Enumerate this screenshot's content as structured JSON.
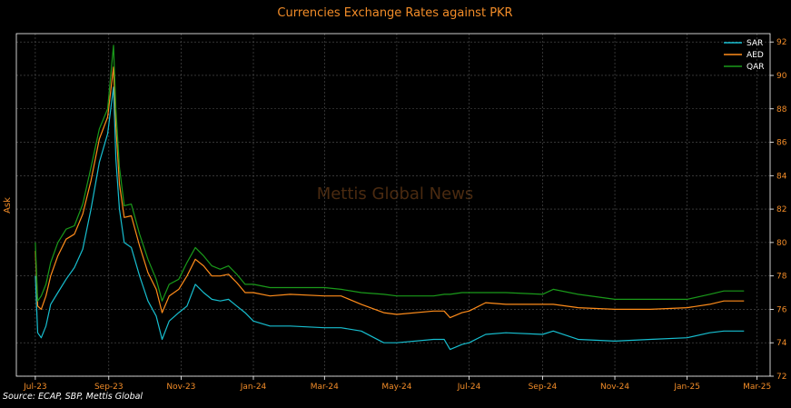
{
  "source_text": "Source: ECAP, SBP, Mettis Global",
  "watermark": "Mettis Global News",
  "colors": {
    "background": "#000000",
    "accent": "#f28c28",
    "SAR": "#17becf",
    "AED": "#ff8c1a",
    "QAR": "#1a9a1a"
  },
  "chart_data": {
    "type": "line",
    "title": "Currencies Exchange Rates against PKR",
    "ylabel": "Ask",
    "xlabel": "",
    "ylim": [
      72,
      92.5
    ],
    "yticks": [
      72,
      74,
      76,
      78,
      80,
      82,
      84,
      86,
      88,
      90,
      92
    ],
    "xrange": [
      "2023-06-15",
      "2025-03-12"
    ],
    "xticks": [
      {
        "date": "2023-07-01",
        "label": "Jul-23"
      },
      {
        "date": "2023-09-01",
        "label": "Sep-23"
      },
      {
        "date": "2023-11-01",
        "label": "Nov-23"
      },
      {
        "date": "2024-01-01",
        "label": "Jan-24"
      },
      {
        "date": "2024-03-01",
        "label": "Mar-24"
      },
      {
        "date": "2024-05-01",
        "label": "May-24"
      },
      {
        "date": "2024-07-01",
        "label": "Jul-24"
      },
      {
        "date": "2024-09-01",
        "label": "Sep-24"
      },
      {
        "date": "2024-11-01",
        "label": "Nov-24"
      },
      {
        "date": "2025-01-01",
        "label": "Jan-25"
      },
      {
        "date": "2025-03-01",
        "label": "Mar-25"
      }
    ],
    "grid": true,
    "legend_position": "top-right",
    "series": [
      {
        "name": "SAR",
        "points": [
          [
            "2023-07-01",
            78.0
          ],
          [
            "2023-07-03",
            74.6
          ],
          [
            "2023-07-06",
            74.3
          ],
          [
            "2023-07-10",
            75.0
          ],
          [
            "2023-07-14",
            76.3
          ],
          [
            "2023-07-20",
            77.0
          ],
          [
            "2023-07-27",
            77.8
          ],
          [
            "2023-08-03",
            78.5
          ],
          [
            "2023-08-10",
            79.6
          ],
          [
            "2023-08-17",
            82.0
          ],
          [
            "2023-08-24",
            84.8
          ],
          [
            "2023-08-31",
            86.5
          ],
          [
            "2023-09-05",
            89.3
          ],
          [
            "2023-09-07",
            85.0
          ],
          [
            "2023-09-10",
            82.0
          ],
          [
            "2023-09-14",
            80.0
          ],
          [
            "2023-09-20",
            79.7
          ],
          [
            "2023-09-27",
            78.0
          ],
          [
            "2023-10-04",
            76.5
          ],
          [
            "2023-10-11",
            75.6
          ],
          [
            "2023-10-16",
            74.2
          ],
          [
            "2023-10-22",
            75.3
          ],
          [
            "2023-10-30",
            75.8
          ],
          [
            "2023-11-06",
            76.2
          ],
          [
            "2023-11-13",
            77.5
          ],
          [
            "2023-11-20",
            77.0
          ],
          [
            "2023-11-27",
            76.6
          ],
          [
            "2023-12-04",
            76.5
          ],
          [
            "2023-12-11",
            76.6
          ],
          [
            "2023-12-18",
            76.2
          ],
          [
            "2023-12-25",
            75.8
          ],
          [
            "2024-01-01",
            75.3
          ],
          [
            "2024-01-15",
            75.0
          ],
          [
            "2024-02-01",
            75.0
          ],
          [
            "2024-03-01",
            74.9
          ],
          [
            "2024-03-15",
            74.9
          ],
          [
            "2024-04-01",
            74.7
          ],
          [
            "2024-04-20",
            74.0
          ],
          [
            "2024-05-01",
            74.0
          ],
          [
            "2024-06-01",
            74.2
          ],
          [
            "2024-06-10",
            74.2
          ],
          [
            "2024-06-15",
            73.6
          ],
          [
            "2024-06-25",
            73.9
          ],
          [
            "2024-07-01",
            74.0
          ],
          [
            "2024-07-15",
            74.5
          ],
          [
            "2024-08-01",
            74.6
          ],
          [
            "2024-09-01",
            74.5
          ],
          [
            "2024-09-10",
            74.7
          ],
          [
            "2024-10-01",
            74.2
          ],
          [
            "2024-11-01",
            74.1
          ],
          [
            "2024-12-01",
            74.2
          ],
          [
            "2025-01-01",
            74.3
          ],
          [
            "2025-01-20",
            74.6
          ],
          [
            "2025-02-01",
            74.7
          ],
          [
            "2025-02-18",
            74.7
          ]
        ]
      },
      {
        "name": "AED",
        "points": [
          [
            "2023-07-01",
            79.5
          ],
          [
            "2023-07-03",
            76.2
          ],
          [
            "2023-07-06",
            76.0
          ],
          [
            "2023-07-10",
            76.8
          ],
          [
            "2023-07-14",
            78.0
          ],
          [
            "2023-07-20",
            79.2
          ],
          [
            "2023-07-27",
            80.2
          ],
          [
            "2023-08-03",
            80.5
          ],
          [
            "2023-08-10",
            81.7
          ],
          [
            "2023-08-17",
            83.7
          ],
          [
            "2023-08-24",
            86.2
          ],
          [
            "2023-08-31",
            87.5
          ],
          [
            "2023-09-05",
            90.5
          ],
          [
            "2023-09-07",
            87.0
          ],
          [
            "2023-09-10",
            83.5
          ],
          [
            "2023-09-14",
            81.5
          ],
          [
            "2023-09-20",
            81.6
          ],
          [
            "2023-09-27",
            79.8
          ],
          [
            "2023-10-04",
            78.2
          ],
          [
            "2023-10-11",
            77.2
          ],
          [
            "2023-10-16",
            75.8
          ],
          [
            "2023-10-22",
            76.8
          ],
          [
            "2023-10-30",
            77.2
          ],
          [
            "2023-11-06",
            78.0
          ],
          [
            "2023-11-13",
            79.0
          ],
          [
            "2023-11-20",
            78.6
          ],
          [
            "2023-11-27",
            78.0
          ],
          [
            "2023-12-04",
            78.0
          ],
          [
            "2023-12-11",
            78.1
          ],
          [
            "2023-12-18",
            77.6
          ],
          [
            "2023-12-25",
            77.0
          ],
          [
            "2024-01-01",
            77.0
          ],
          [
            "2024-01-15",
            76.8
          ],
          [
            "2024-02-01",
            76.9
          ],
          [
            "2024-03-01",
            76.8
          ],
          [
            "2024-03-15",
            76.8
          ],
          [
            "2024-04-01",
            76.3
          ],
          [
            "2024-04-20",
            75.8
          ],
          [
            "2024-05-01",
            75.7
          ],
          [
            "2024-06-01",
            75.9
          ],
          [
            "2024-06-10",
            75.9
          ],
          [
            "2024-06-15",
            75.5
          ],
          [
            "2024-06-25",
            75.8
          ],
          [
            "2024-07-01",
            75.9
          ],
          [
            "2024-07-15",
            76.4
          ],
          [
            "2024-08-01",
            76.3
          ],
          [
            "2024-09-01",
            76.3
          ],
          [
            "2024-09-10",
            76.3
          ],
          [
            "2024-10-01",
            76.1
          ],
          [
            "2024-11-01",
            76.0
          ],
          [
            "2024-12-01",
            76.0
          ],
          [
            "2025-01-01",
            76.1
          ],
          [
            "2025-01-20",
            76.3
          ],
          [
            "2025-02-01",
            76.5
          ],
          [
            "2025-02-18",
            76.5
          ]
        ]
      },
      {
        "name": "QAR",
        "points": [
          [
            "2023-07-01",
            80.0
          ],
          [
            "2023-07-03",
            76.5
          ],
          [
            "2023-07-06",
            76.8
          ],
          [
            "2023-07-10",
            77.5
          ],
          [
            "2023-07-14",
            78.8
          ],
          [
            "2023-07-20",
            80.0
          ],
          [
            "2023-07-27",
            80.8
          ],
          [
            "2023-08-03",
            81.0
          ],
          [
            "2023-08-10",
            82.3
          ],
          [
            "2023-08-17",
            84.5
          ],
          [
            "2023-08-24",
            86.8
          ],
          [
            "2023-08-31",
            88.0
          ],
          [
            "2023-09-05",
            91.8
          ],
          [
            "2023-09-07",
            88.0
          ],
          [
            "2023-09-10",
            84.5
          ],
          [
            "2023-09-14",
            82.2
          ],
          [
            "2023-09-20",
            82.3
          ],
          [
            "2023-09-27",
            80.5
          ],
          [
            "2023-10-04",
            79.0
          ],
          [
            "2023-10-11",
            77.8
          ],
          [
            "2023-10-16",
            76.5
          ],
          [
            "2023-10-22",
            77.5
          ],
          [
            "2023-10-30",
            77.8
          ],
          [
            "2023-11-06",
            78.8
          ],
          [
            "2023-11-13",
            79.7
          ],
          [
            "2023-11-20",
            79.2
          ],
          [
            "2023-11-27",
            78.6
          ],
          [
            "2023-12-04",
            78.4
          ],
          [
            "2023-12-11",
            78.6
          ],
          [
            "2023-12-18",
            78.1
          ],
          [
            "2023-12-25",
            77.5
          ],
          [
            "2024-01-01",
            77.5
          ],
          [
            "2024-01-15",
            77.3
          ],
          [
            "2024-02-01",
            77.3
          ],
          [
            "2024-03-01",
            77.3
          ],
          [
            "2024-03-15",
            77.2
          ],
          [
            "2024-04-01",
            77.0
          ],
          [
            "2024-04-20",
            76.9
          ],
          [
            "2024-05-01",
            76.8
          ],
          [
            "2024-06-01",
            76.8
          ],
          [
            "2024-06-10",
            76.9
          ],
          [
            "2024-06-15",
            76.9
          ],
          [
            "2024-06-25",
            77.0
          ],
          [
            "2024-07-01",
            77.0
          ],
          [
            "2024-07-15",
            77.0
          ],
          [
            "2024-08-01",
            77.0
          ],
          [
            "2024-09-01",
            76.9
          ],
          [
            "2024-09-10",
            77.2
          ],
          [
            "2024-10-01",
            76.9
          ],
          [
            "2024-11-01",
            76.6
          ],
          [
            "2024-12-01",
            76.6
          ],
          [
            "2025-01-01",
            76.6
          ],
          [
            "2025-01-20",
            76.9
          ],
          [
            "2025-02-01",
            77.1
          ],
          [
            "2025-02-18",
            77.1
          ]
        ]
      }
    ]
  }
}
